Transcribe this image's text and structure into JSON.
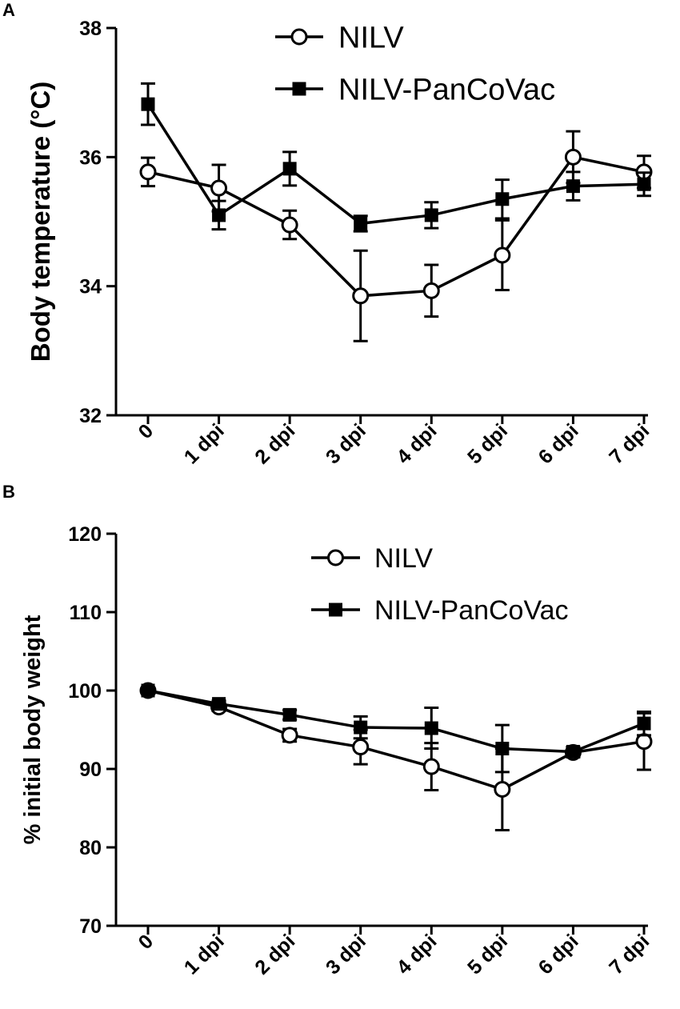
{
  "figure": {
    "panel_a_letter": "A",
    "panel_b_letter": "B"
  },
  "chart_data": [
    {
      "panel": "A",
      "type": "line",
      "title": "",
      "xlabel": "",
      "ylabel": "Body temperature (°C)",
      "ylim": [
        32,
        38
      ],
      "yticks": [
        32,
        34,
        36,
        38
      ],
      "categories": [
        "0",
        "1 dpi",
        "2 dpi",
        "3 dpi",
        "4 dpi",
        "5 dpi",
        "6 dpi",
        "7 dpi"
      ],
      "legend": {
        "placement": "top-center"
      },
      "series": [
        {
          "name": "NILV",
          "marker": "open-circle",
          "values": [
            35.77,
            35.52,
            34.95,
            33.85,
            33.93,
            34.48,
            36.0,
            35.77
          ],
          "errors": [
            0.22,
            0.36,
            0.22,
            0.7,
            0.4,
            0.54,
            0.4,
            0.25
          ]
        },
        {
          "name": "NILV-PanCoVac",
          "marker": "filled-square",
          "values": [
            36.82,
            35.1,
            35.82,
            34.97,
            35.1,
            35.35,
            35.55,
            35.58
          ],
          "errors": [
            0.32,
            0.22,
            0.26,
            0.12,
            0.2,
            0.3,
            0.22,
            0.18
          ]
        }
      ]
    },
    {
      "panel": "B",
      "type": "line",
      "title": "",
      "xlabel": "",
      "ylabel": "% initial body weight",
      "ylim": [
        70,
        120
      ],
      "yticks": [
        70,
        80,
        90,
        100,
        110,
        120
      ],
      "categories": [
        "0",
        "1 dpi",
        "2 dpi",
        "3 dpi",
        "4 dpi",
        "5 dpi",
        "6 dpi",
        "7 dpi"
      ],
      "legend": {
        "placement": "top-center"
      },
      "series": [
        {
          "name": "NILV",
          "marker": "open-circle",
          "values": [
            100.0,
            97.9,
            94.3,
            92.8,
            90.3,
            87.4,
            92.1,
            93.5
          ],
          "errors": [
            0.4,
            0.5,
            0.8,
            2.2,
            3.0,
            5.2,
            0.6,
            3.6
          ]
        },
        {
          "name": "NILV-PanCoVac",
          "marker": "filled-square",
          "values": [
            100.0,
            98.3,
            96.9,
            95.3,
            95.2,
            92.6,
            92.2,
            95.8
          ],
          "errors": [
            0.4,
            0.4,
            0.6,
            1.4,
            2.6,
            3.0,
            0.6,
            1.5
          ]
        }
      ]
    }
  ]
}
